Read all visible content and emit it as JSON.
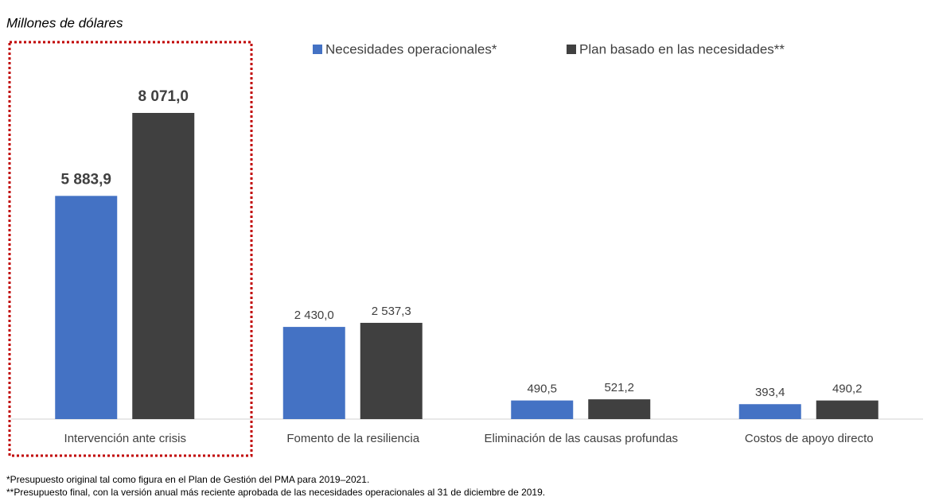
{
  "chart_data": {
    "type": "bar",
    "subtitle": "Millones de dólares",
    "categories": [
      "Intervención ante crisis",
      "Fomento de la resiliencia",
      "Eliminación de las causas profundas",
      "Costos de apoyo directo"
    ],
    "series": [
      {
        "name": "Necesidades operacionales*",
        "color": "#4472c4",
        "values": [
          5883.9,
          2430.0,
          490.5,
          393.4
        ],
        "value_labels": [
          "5 883,9",
          "2 430,0",
          "490,5",
          "393,4"
        ]
      },
      {
        "name": "Plan basado en las necesidades**",
        "color": "#404040",
        "values": [
          8071.0,
          2537.3,
          521.2,
          490.2
        ],
        "value_labels": [
          "8 071,0",
          "2 537,3",
          "521,2",
          "490,2"
        ]
      }
    ],
    "notes": [
      "*Presupuesto original tal como figura en el Plan de Gestión del PMA para 2019–2021.",
      "**Presupuesto final, con la versión anual más reciente aprobada de las necesidades operacionales al 31 de diciembre de 2019."
    ]
  }
}
